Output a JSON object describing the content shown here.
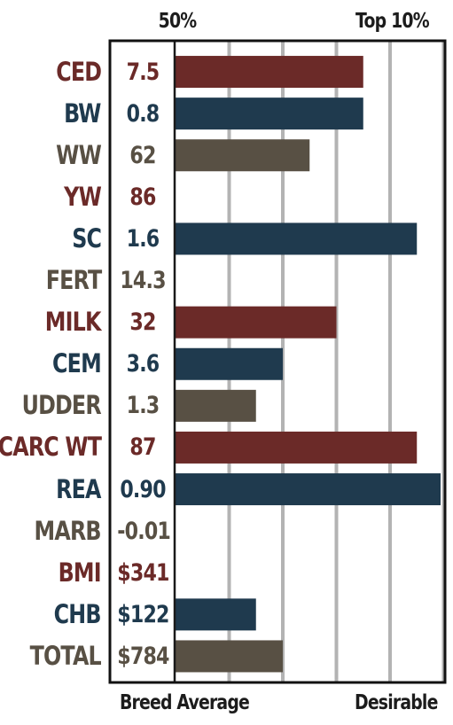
{
  "chart_data": {
    "type": "bar",
    "orientation": "horizontal",
    "top_labels": [
      "50%",
      "Top 10%"
    ],
    "bottom_labels": [
      "Breed Average",
      "Desirable"
    ],
    "colors": [
      "#6b2a28",
      "#1f3a4e",
      "#585044"
    ],
    "xlim": [
      0,
      5
    ],
    "grid": true,
    "rows": [
      {
        "trait": "CED",
        "value": "7.5",
        "bar": 3.5
      },
      {
        "trait": "BW",
        "value": "0.8",
        "bar": 3.5
      },
      {
        "trait": "WW",
        "value": "62",
        "bar": 2.5
      },
      {
        "trait": "YW",
        "value": "86",
        "bar": 0
      },
      {
        "trait": "SC",
        "value": "1.6",
        "bar": 4.5
      },
      {
        "trait": "FERT",
        "value": "14.3",
        "bar": 0
      },
      {
        "trait": "MILK",
        "value": "32",
        "bar": 3.0
      },
      {
        "trait": "CEM",
        "value": "3.6",
        "bar": 2.0
      },
      {
        "trait": "UDDER",
        "value": "1.3",
        "bar": 1.5
      },
      {
        "trait": "CARC WT",
        "value": "87",
        "bar": 4.5
      },
      {
        "trait": "REA",
        "value": "0.90",
        "bar": 5.0
      },
      {
        "trait": "MARB",
        "value": "-0.01",
        "bar": 0
      },
      {
        "trait": "BMI",
        "value": "$341",
        "bar": 0
      },
      {
        "trait": "CHB",
        "value": "$122",
        "bar": 1.5
      },
      {
        "trait": "TOTAL",
        "value": "$784",
        "bar": 2.0
      }
    ]
  }
}
